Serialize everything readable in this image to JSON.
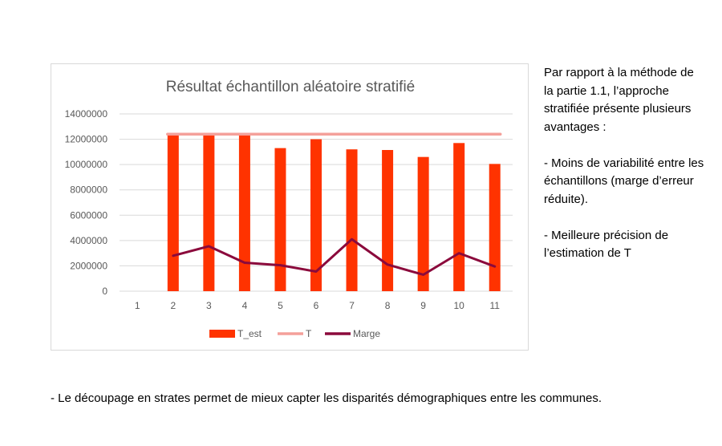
{
  "chart_data": {
    "type": "bar",
    "title": "Résultat échantillon aléatoire stratifié",
    "categories": [
      "1",
      "2",
      "3",
      "4",
      "5",
      "6",
      "7",
      "8",
      "9",
      "10",
      "11"
    ],
    "ylim": [
      0,
      14000000
    ],
    "yticks": [
      0,
      2000000,
      4000000,
      6000000,
      8000000,
      10000000,
      12000000,
      14000000
    ],
    "ytick_labels": [
      "0",
      "2000000",
      "4000000",
      "6000000",
      "8000000",
      "10000000",
      "12000000",
      "14000000"
    ],
    "grid": true,
    "legend_position": "bottom",
    "series": [
      {
        "name": "T_est",
        "kind": "bar",
        "color": "#ff3300",
        "values": [
          null,
          12400000,
          12500000,
          12300000,
          11300000,
          12000000,
          11200000,
          11150000,
          10600000,
          11700000,
          10050000
        ]
      },
      {
        "name": "T",
        "kind": "line",
        "color": "#f4a09a",
        "values": [
          null,
          12400000,
          12400000,
          12400000,
          12400000,
          12400000,
          12400000,
          12400000,
          12400000,
          12400000,
          12400000
        ]
      },
      {
        "name": "Marge",
        "kind": "line",
        "color": "#8b0a3c",
        "values": [
          null,
          2800000,
          3550000,
          2250000,
          2050000,
          1550000,
          4100000,
          2100000,
          1300000,
          3000000,
          1950000
        ]
      }
    ]
  },
  "side_text": {
    "intro": "Par rapport à la méthode de la partie 1.1, l’approche stratifiée présente plusieurs avantages :",
    "point1": "- Moins de variabilité entre les échantillons (marge d’erreur réduite).",
    "point2": "- Meilleure précision de l’estimation de T"
  },
  "bottom_text": "- Le découpage en strates permet de mieux capter les disparités démographiques entre les communes."
}
